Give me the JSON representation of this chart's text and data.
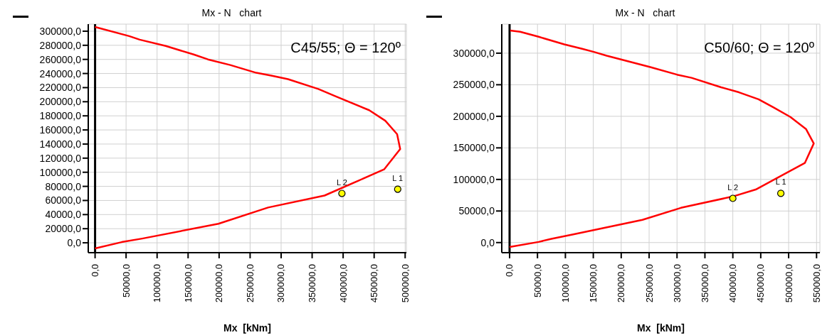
{
  "chart_data": [
    {
      "type": "line",
      "title": "Mx - N   chart",
      "xlabel": "Mx  [kNm]",
      "grid": true,
      "marker": "none",
      "xlim": [
        -11000,
        502000
      ],
      "ylim": [
        -14000,
        310000
      ],
      "xticks": [
        {
          "value": 0,
          "label": "0,0"
        },
        {
          "value": 50000,
          "label": "50000,0"
        },
        {
          "value": 100000,
          "label": "100000,0"
        },
        {
          "value": 150000,
          "label": "150000,0"
        },
        {
          "value": 200000,
          "label": "200000,0"
        },
        {
          "value": 250000,
          "label": "250000,0"
        },
        {
          "value": 300000,
          "label": "300000,0"
        },
        {
          "value": 350000,
          "label": "350000,0"
        },
        {
          "value": 400000,
          "label": "400000,0"
        },
        {
          "value": 450000,
          "label": "450000,0"
        },
        {
          "value": 500000,
          "label": "500000,0"
        }
      ],
      "yticks": [
        {
          "value": 0,
          "label": "0,0"
        },
        {
          "value": 20000,
          "label": "20000,0"
        },
        {
          "value": 40000,
          "label": "40000,0"
        },
        {
          "value": 60000,
          "label": "60000,0"
        },
        {
          "value": 80000,
          "label": "80000,0"
        },
        {
          "value": 100000,
          "label": "100000,0"
        },
        {
          "value": 120000,
          "label": "120000,0"
        },
        {
          "value": 140000,
          "label": "140000,0"
        },
        {
          "value": 160000,
          "label": "160000,0"
        },
        {
          "value": 180000,
          "label": "180000,0"
        },
        {
          "value": 200000,
          "label": "200000,0"
        },
        {
          "value": 220000,
          "label": "220000,0"
        },
        {
          "value": 240000,
          "label": "240000,0"
        },
        {
          "value": 260000,
          "label": "260000,0"
        },
        {
          "value": 280000,
          "label": "280000,0"
        },
        {
          "value": 300000,
          "label": "300000,0"
        }
      ],
      "ref_lines": [
        {
          "axis": "x",
          "value": 0,
          "color": "#000000"
        }
      ],
      "series": [
        {
          "color": "#ff0000",
          "x": [
            0,
            43000,
            76000,
            199000,
            279000,
            370000,
            466000,
            492000,
            487000,
            468000,
            442000,
            387000,
            360000,
            311000,
            284000,
            260000,
            218000,
            182000,
            159000,
            114000,
            72000,
            55000,
            0
          ],
          "values": [
            -8000,
            1000,
            6000,
            27000,
            50000,
            67000,
            104000,
            133000,
            154000,
            173000,
            188000,
            208000,
            218000,
            232000,
            237000,
            241000,
            252000,
            260000,
            267000,
            279000,
            288000,
            293000,
            306000
          ]
        },
        {
          "type": "scatter",
          "color": "#ffff00",
          "marker": "circle",
          "x": [
            488000,
            398000
          ],
          "values": [
            76000,
            70000
          ]
        }
      ],
      "annotations": [
        "C45/55; Θ = 120º",
        {
          "text": "L 1",
          "x": 488000,
          "y": 76000
        },
        {
          "text": "L 2",
          "x": 398000,
          "y": 70000
        }
      ]
    },
    {
      "type": "line",
      "title": "Mx - N   chart",
      "xlabel": "Mx  [kNm]",
      "grid": true,
      "marker": "none",
      "xlim": [
        -14000,
        556000
      ],
      "ylim": [
        -16000,
        346000
      ],
      "xticks": [
        {
          "value": 0,
          "label": "0,0"
        },
        {
          "value": 50000,
          "label": "50000,0"
        },
        {
          "value": 100000,
          "label": "100000,0"
        },
        {
          "value": 150000,
          "label": "150000,0"
        },
        {
          "value": 200000,
          "label": "200000,0"
        },
        {
          "value": 250000,
          "label": "250000,0"
        },
        {
          "value": 300000,
          "label": "300000,0"
        },
        {
          "value": 350000,
          "label": "350000,0"
        },
        {
          "value": 400000,
          "label": "400000,0"
        },
        {
          "value": 450000,
          "label": "450000,0"
        },
        {
          "value": 500000,
          "label": "500000,0"
        },
        {
          "value": 550000,
          "label": "550000,0"
        }
      ],
      "yticks": [
        {
          "value": 0,
          "label": "0,0"
        },
        {
          "value": 50000,
          "label": "50000,0"
        },
        {
          "value": 100000,
          "label": "100000,0"
        },
        {
          "value": 150000,
          "label": "150000,0"
        },
        {
          "value": 200000,
          "label": "200000,0"
        },
        {
          "value": 250000,
          "label": "250000,0"
        },
        {
          "value": 300000,
          "label": "300000,0"
        }
      ],
      "ref_lines": [
        {
          "axis": "x",
          "value": 0,
          "color": "#000000"
        }
      ],
      "series": [
        {
          "color": "#ff0000",
          "x": [
            0,
            52000,
            75000,
            114000,
            238000,
            307000,
            400000,
            441000,
            529000,
            545000,
            531000,
            503000,
            473000,
            446000,
            411000,
            379000,
            326000,
            300000,
            252000,
            174000,
            151000,
            130000,
            98000,
            52000,
            19000,
            1000
          ],
          "values": [
            -7000,
            1000,
            6000,
            13000,
            36000,
            55000,
            73000,
            84000,
            126000,
            157000,
            180000,
            199000,
            214000,
            227000,
            238000,
            246000,
            261000,
            266000,
            278000,
            296000,
            302000,
            307000,
            314000,
            326000,
            334000,
            336000
          ]
        },
        {
          "type": "scatter",
          "color": "#ffff00",
          "marker": "circle",
          "x": [
            486000,
            400000
          ],
          "values": [
            78000,
            70000
          ]
        }
      ],
      "annotations": [
        "C50/60; Θ = 120º",
        {
          "text": "L 1",
          "x": 486000,
          "y": 78000
        },
        {
          "text": "L 2",
          "x": 400000,
          "y": 70000
        }
      ]
    }
  ]
}
